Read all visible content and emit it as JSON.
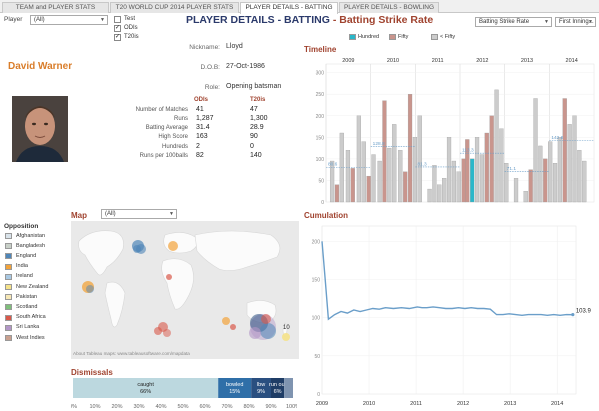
{
  "tabs": [
    {
      "label": "TEAM and PLAYER STATS"
    },
    {
      "label": "T20 WORLD CUP 2014 PLAYER STATS"
    },
    {
      "label": "PLAYER DETAILS - BATTING"
    },
    {
      "label": "PLAYER DETAILS - BOWLING"
    }
  ],
  "header": {
    "title_main": "PLAYER DETAILS - BATTING",
    "title_sep": " - ",
    "title_sub": "Batting Strike Rate",
    "player_label": "Player",
    "player_value": "(All)",
    "metric_value": "Batting Strike Rate",
    "innings_value": "First Inning..."
  },
  "format_filter": {
    "items": [
      {
        "label": "Test",
        "checked": false
      },
      {
        "label": "ODIs",
        "checked": true
      },
      {
        "label": "T20is",
        "checked": true
      }
    ]
  },
  "player": {
    "name": "David Warner",
    "nickname_key": "Nickname:",
    "nickname": "Lloyd",
    "dob_key": "D.O.B:",
    "dob": "27-Oct-1986",
    "role_key": "Role:",
    "role": "Opening batsman"
  },
  "stats": {
    "col_odi": "ODIs",
    "col_t20": "T20is",
    "rows": [
      {
        "label": "Number of Matches",
        "odi": "41",
        "t20": "47"
      },
      {
        "label": "Runs",
        "odi": "1,287",
        "t20": "1,300"
      },
      {
        "label": "Batting Average",
        "odi": "31.4",
        "t20": "28.9"
      },
      {
        "label": "High Score",
        "odi": "163",
        "t20": "90"
      },
      {
        "label": "Hundreds",
        "odi": "2",
        "t20": "0"
      },
      {
        "label": "Runs per 100balls",
        "odi": "82",
        "t20": "140"
      }
    ]
  },
  "opposition": {
    "title": "Opposition",
    "items": [
      {
        "label": "Afghanistan",
        "color": "#d9e3ea"
      },
      {
        "label": "Bangladesh",
        "color": "#c8d0c8"
      },
      {
        "label": "England",
        "color": "#4f86b8"
      },
      {
        "label": "India",
        "color": "#f2a33a"
      },
      {
        "label": "Ireland",
        "color": "#a9c9e3"
      },
      {
        "label": "New Zealand",
        "color": "#f5e28a"
      },
      {
        "label": "Pakistan",
        "color": "#f7e8b6"
      },
      {
        "label": "Scotland",
        "color": "#7fbf7b"
      },
      {
        "label": "South Africa",
        "color": "#d9584a"
      },
      {
        "label": "Sri Lanka",
        "color": "#b296c7"
      },
      {
        "label": "West Indies",
        "color": "#c9a08f"
      }
    ]
  },
  "map": {
    "title": "Map",
    "filter_value": "(All)",
    "attribution": "About Tableau maps: www.tableausoftware.com/mapdata",
    "label_10": "10"
  },
  "dismissals": {
    "title": "Dismissals",
    "segments": [
      {
        "label": "caught",
        "pct": "66%",
        "value": 66,
        "color": "#bcd8df"
      },
      {
        "label": "bowled",
        "pct": "15%",
        "value": 15,
        "color": "#2f6fa8"
      },
      {
        "label": "lbw",
        "pct": "9%",
        "value": 9,
        "color": "#2a4f80"
      },
      {
        "label": "run out",
        "pct": "6%",
        "value": 6,
        "color": "#1f3d66"
      },
      {
        "label": "",
        "pct": "",
        "value": 4,
        "color": "#7f94b0"
      }
    ],
    "axis_ticks": [
      "0%",
      "10%",
      "20%",
      "30%",
      "40%",
      "50%",
      "60%",
      "70%",
      "80%",
      "90%",
      "100%"
    ]
  },
  "timeline": {
    "title": "Timeline",
    "legend": [
      {
        "label": "Hundred",
        "color": "#2ab7c9"
      },
      {
        "label": "Fifty",
        "color": "#c9958d"
      },
      {
        "label": "< Fifty",
        "color": "#cccccc"
      }
    ],
    "colors": {
      "hundred": "#2ab7c9",
      "fifty": "#c9958d",
      "lessfifty": "#cccccc"
    }
  },
  "cumulation": {
    "title": "Cumulation",
    "final_label": "103.9",
    "line_color": "#6a9ec9"
  },
  "chart_data": [
    {
      "type": "bar",
      "name": "timeline",
      "xticks": [
        "2009",
        "2010",
        "2011",
        "2012",
        "2013",
        "2014"
      ],
      "yticks": [
        "0",
        "50",
        "100",
        "150",
        "200",
        "250",
        "300"
      ],
      "ylim": [
        0,
        320
      ],
      "reference_labels": [
        "80.6",
        "128.8",
        "81.3",
        "113.3",
        "71.1",
        "142.6"
      ],
      "reference_values": [
        80.6,
        128.8,
        81.3,
        113.3,
        71.1,
        142.6
      ],
      "bars": [
        {
          "x": 0.5,
          "y": 95,
          "kind": "lessfifty"
        },
        {
          "x": 0.9,
          "y": 40,
          "kind": "fifty"
        },
        {
          "x": 1.3,
          "y": 160,
          "kind": "lessfifty"
        },
        {
          "x": 1.8,
          "y": 120,
          "kind": "lessfifty"
        },
        {
          "x": 2.2,
          "y": 78,
          "kind": "fifty"
        },
        {
          "x": 2.7,
          "y": 200,
          "kind": "lessfifty"
        },
        {
          "x": 3.1,
          "y": 140,
          "kind": "lessfifty"
        },
        {
          "x": 3.5,
          "y": 60,
          "kind": "fifty"
        },
        {
          "x": 3.9,
          "y": 110,
          "kind": "lessfifty"
        },
        {
          "x": 4.4,
          "y": 95,
          "kind": "lessfifty"
        },
        {
          "x": 4.8,
          "y": 235,
          "kind": "fifty"
        },
        {
          "x": 5.2,
          "y": 125,
          "kind": "lessfifty"
        },
        {
          "x": 5.6,
          "y": 180,
          "kind": "lessfifty"
        },
        {
          "x": 6.1,
          "y": 120,
          "kind": "lessfifty"
        },
        {
          "x": 6.5,
          "y": 70,
          "kind": "fifty"
        },
        {
          "x": 6.9,
          "y": 250,
          "kind": "fifty"
        },
        {
          "x": 7.3,
          "y": 150,
          "kind": "lessfifty"
        },
        {
          "x": 7.7,
          "y": 200,
          "kind": "lessfifty"
        },
        {
          "x": 8.5,
          "y": 30,
          "kind": "lessfifty"
        },
        {
          "x": 8.9,
          "y": 85,
          "kind": "lessfifty"
        },
        {
          "x": 9.3,
          "y": 40,
          "kind": "lessfifty"
        },
        {
          "x": 9.7,
          "y": 55,
          "kind": "lessfifty"
        },
        {
          "x": 10.1,
          "y": 150,
          "kind": "lessfifty"
        },
        {
          "x": 10.5,
          "y": 95,
          "kind": "lessfifty"
        },
        {
          "x": 10.9,
          "y": 70,
          "kind": "lessfifty"
        },
        {
          "x": 11.3,
          "y": 100,
          "kind": "fifty"
        },
        {
          "x": 11.6,
          "y": 145,
          "kind": "fifty"
        },
        {
          "x": 12.0,
          "y": 100,
          "kind": "hundred"
        },
        {
          "x": 12.4,
          "y": 150,
          "kind": "lessfifty"
        },
        {
          "x": 12.8,
          "y": 110,
          "kind": "lessfifty"
        },
        {
          "x": 13.2,
          "y": 160,
          "kind": "fifty"
        },
        {
          "x": 13.6,
          "y": 200,
          "kind": "fifty"
        },
        {
          "x": 14.0,
          "y": 260,
          "kind": "lessfifty"
        },
        {
          "x": 14.4,
          "y": 170,
          "kind": "lessfifty"
        },
        {
          "x": 14.8,
          "y": 90,
          "kind": "lessfifty"
        },
        {
          "x": 15.6,
          "y": 55,
          "kind": "lessfifty"
        },
        {
          "x": 16.4,
          "y": 25,
          "kind": "lessfifty"
        },
        {
          "x": 16.8,
          "y": 75,
          "kind": "fifty"
        },
        {
          "x": 17.2,
          "y": 240,
          "kind": "lessfifty"
        },
        {
          "x": 17.6,
          "y": 130,
          "kind": "lessfifty"
        },
        {
          "x": 18.0,
          "y": 100,
          "kind": "fifty"
        },
        {
          "x": 18.4,
          "y": 140,
          "kind": "lessfifty"
        },
        {
          "x": 18.8,
          "y": 90,
          "kind": "lessfifty"
        },
        {
          "x": 19.2,
          "y": 150,
          "kind": "lessfifty"
        },
        {
          "x": 19.6,
          "y": 240,
          "kind": "fifty"
        },
        {
          "x": 20.0,
          "y": 180,
          "kind": "lessfifty"
        },
        {
          "x": 20.4,
          "y": 200,
          "kind": "lessfifty"
        },
        {
          "x": 20.8,
          "y": 120,
          "kind": "lessfifty"
        },
        {
          "x": 21.2,
          "y": 95,
          "kind": "lessfifty"
        }
      ],
      "xmax": 22
    },
    {
      "type": "line",
      "name": "cumulation",
      "xticks": [
        "2009",
        "2010",
        "2011",
        "2012",
        "2013",
        "2014"
      ],
      "yticks": [
        "0",
        "50",
        "100",
        "150",
        "200"
      ],
      "ylim": [
        0,
        220
      ],
      "points": [
        [
          0.0,
          200
        ],
        [
          0.2,
          150
        ],
        [
          0.4,
          98
        ],
        [
          0.8,
          104
        ],
        [
          1.2,
          108
        ],
        [
          1.6,
          106
        ],
        [
          2.0,
          110
        ],
        [
          2.4,
          108
        ],
        [
          2.8,
          110
        ],
        [
          3.2,
          112
        ],
        [
          3.6,
          111
        ],
        [
          4.0,
          113
        ],
        [
          4.5,
          112
        ],
        [
          5.0,
          113
        ],
        [
          5.5,
          112
        ],
        [
          6.0,
          114
        ],
        [
          6.3,
          113
        ],
        [
          6.6,
          113
        ],
        [
          7.0,
          114
        ],
        [
          7.4,
          113
        ],
        [
          7.8,
          112
        ],
        [
          8.2,
          112
        ],
        [
          8.6,
          113
        ],
        [
          9.0,
          112
        ],
        [
          9.4,
          113
        ],
        [
          9.8,
          112
        ],
        [
          10.2,
          112
        ],
        [
          10.6,
          111
        ],
        [
          11.0,
          104
        ],
        [
          11.4,
          104
        ],
        [
          11.8,
          105
        ],
        [
          12.2,
          104
        ],
        [
          12.6,
          103
        ],
        [
          13.0,
          104
        ],
        [
          13.4,
          104
        ],
        [
          13.8,
          104
        ],
        [
          14.2,
          103
        ],
        [
          14.6,
          104
        ],
        [
          15.0,
          103
        ],
        [
          15.4,
          104
        ],
        [
          15.8,
          103.9
        ]
      ],
      "xmax": 16
    }
  ]
}
